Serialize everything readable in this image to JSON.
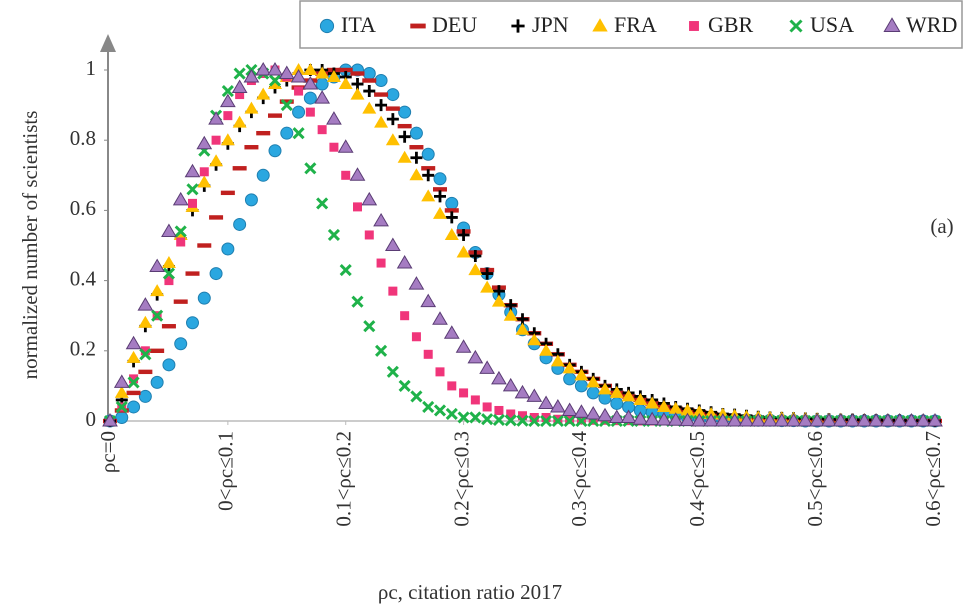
{
  "chart_data": {
    "type": "scatter",
    "xlabel": "ρc, citation ratio 2017",
    "ylabel": "normalized number of scientists",
    "annotation": "(a)",
    "x": [
      0,
      0.01,
      0.02,
      0.03,
      0.04,
      0.05,
      0.06,
      0.07,
      0.08,
      0.09,
      0.1,
      0.11,
      0.12,
      0.13,
      0.14,
      0.15,
      0.16,
      0.17,
      0.18,
      0.19,
      0.2,
      0.21,
      0.22,
      0.23,
      0.24,
      0.25,
      0.26,
      0.27,
      0.28,
      0.29,
      0.3,
      0.31,
      0.32,
      0.33,
      0.34,
      0.35,
      0.36,
      0.37,
      0.38,
      0.39,
      0.4,
      0.41,
      0.42,
      0.43,
      0.44,
      0.45,
      0.46,
      0.47,
      0.48,
      0.49,
      0.5,
      0.51,
      0.52,
      0.53,
      0.54,
      0.55,
      0.56,
      0.57,
      0.58,
      0.59,
      0.6,
      0.61,
      0.62,
      0.63,
      0.64,
      0.65,
      0.66,
      0.67,
      0.68,
      0.69,
      0.7
    ],
    "xlim": [
      0,
      0.7
    ],
    "xticks": [
      {
        "value": 0,
        "label": "ρc=0"
      },
      {
        "value": 0.1,
        "label": "0<ρc≤0.1"
      },
      {
        "value": 0.2,
        "label": "0.1<ρc≤0.2"
      },
      {
        "value": 0.3,
        "label": "0.2<ρc≤0.3"
      },
      {
        "value": 0.4,
        "label": "0.3<ρc≤0.4"
      },
      {
        "value": 0.5,
        "label": "0.4<ρc≤0.5"
      },
      {
        "value": 0.6,
        "label": "0.5<ρc≤0.6"
      },
      {
        "value": 0.7,
        "label": "0.6<ρc≤0.7"
      }
    ],
    "ylim": [
      0,
      1
    ],
    "yticks": [
      0,
      0.2,
      0.4,
      0.6,
      0.8,
      1
    ],
    "grid": false,
    "legend": "top",
    "series": [
      {
        "name": "ITA",
        "color": "#2aa7e0",
        "marker": "circle",
        "values": [
          0,
          0.01,
          0.04,
          0.07,
          0.11,
          0.16,
          0.22,
          0.28,
          0.35,
          0.42,
          0.49,
          0.56,
          0.63,
          0.7,
          0.77,
          0.82,
          0.88,
          0.92,
          0.96,
          0.98,
          1,
          1,
          0.99,
          0.97,
          0.93,
          0.88,
          0.82,
          0.76,
          0.69,
          0.62,
          0.55,
          0.48,
          0.42,
          0.36,
          0.31,
          0.26,
          0.22,
          0.18,
          0.15,
          0.12,
          0.1,
          0.08,
          0.065,
          0.05,
          0.04,
          0.03,
          0.025,
          0.02,
          0.015,
          0.01,
          0.008,
          0.006,
          0.005,
          0.004,
          0.003,
          0.002,
          0.002,
          0.001,
          0.001,
          0,
          0,
          0,
          0,
          0,
          0,
          0,
          0,
          0,
          0,
          0,
          0
        ]
      },
      {
        "name": "DEU",
        "color": "#c0201f",
        "marker": "dash",
        "values": [
          0,
          0.03,
          0.08,
          0.14,
          0.2,
          0.27,
          0.34,
          0.42,
          0.5,
          0.58,
          0.65,
          0.72,
          0.78,
          0.82,
          0.87,
          0.91,
          0.95,
          0.97,
          0.99,
          1,
          1,
          0.99,
          0.97,
          0.93,
          0.89,
          0.84,
          0.78,
          0.72,
          0.66,
          0.6,
          0.54,
          0.48,
          0.43,
          0.38,
          0.33,
          0.29,
          0.25,
          0.22,
          0.19,
          0.16,
          0.14,
          0.12,
          0.1,
          0.08,
          0.07,
          0.06,
          0.05,
          0.04,
          0.035,
          0.03,
          0.025,
          0.02,
          0.015,
          0.012,
          0.01,
          0.008,
          0.006,
          0.005,
          0.004,
          0.003,
          0.003,
          0.002,
          0.002,
          0.001,
          0.001,
          0.001,
          0,
          0,
          0,
          0,
          0
        ]
      },
      {
        "name": "JPN",
        "color": "#000000",
        "marker": "plus",
        "values": [
          0,
          0.06,
          0.17,
          0.27,
          0.36,
          0.44,
          0.52,
          0.6,
          0.67,
          0.73,
          0.79,
          0.84,
          0.88,
          0.92,
          0.95,
          0.97,
          0.99,
          1,
          1,
          0.99,
          0.98,
          0.96,
          0.94,
          0.9,
          0.86,
          0.81,
          0.75,
          0.7,
          0.64,
          0.58,
          0.53,
          0.47,
          0.42,
          0.37,
          0.33,
          0.29,
          0.25,
          0.22,
          0.19,
          0.16,
          0.14,
          0.12,
          0.1,
          0.09,
          0.08,
          0.07,
          0.06,
          0.05,
          0.04,
          0.035,
          0.03,
          0.025,
          0.02,
          0.018,
          0.015,
          0.012,
          0.01,
          0.009,
          0.008,
          0.007,
          0.006,
          0.005,
          0.004,
          0.004,
          0.003,
          0.003,
          0.002,
          0.002,
          0.001,
          0.001,
          0
        ]
      },
      {
        "name": "FRA",
        "color": "#ffc000",
        "marker": "triangle",
        "values": [
          0,
          0.08,
          0.18,
          0.28,
          0.37,
          0.45,
          0.53,
          0.61,
          0.68,
          0.74,
          0.8,
          0.85,
          0.89,
          0.93,
          0.96,
          0.98,
          1,
          1,
          0.99,
          0.98,
          0.96,
          0.93,
          0.89,
          0.85,
          0.8,
          0.75,
          0.7,
          0.64,
          0.59,
          0.53,
          0.48,
          0.43,
          0.38,
          0.34,
          0.3,
          0.26,
          0.23,
          0.2,
          0.17,
          0.15,
          0.13,
          0.11,
          0.09,
          0.08,
          0.07,
          0.06,
          0.05,
          0.04,
          0.035,
          0.03,
          0.025,
          0.02,
          0.018,
          0.015,
          0.012,
          0.01,
          0.009,
          0.008,
          0.007,
          0.006,
          0.005,
          0.004,
          0.004,
          0.003,
          0.003,
          0.002,
          0.002,
          0.001,
          0.001,
          0.001,
          0
        ]
      },
      {
        "name": "GBR",
        "color": "#f0357a",
        "marker": "square",
        "values": [
          0,
          0.04,
          0.12,
          0.2,
          0.3,
          0.4,
          0.51,
          0.62,
          0.71,
          0.8,
          0.87,
          0.93,
          0.97,
          0.99,
          1,
          0.98,
          0.94,
          0.88,
          0.83,
          0.78,
          0.7,
          0.61,
          0.53,
          0.45,
          0.37,
          0.3,
          0.24,
          0.19,
          0.14,
          0.1,
          0.08,
          0.06,
          0.04,
          0.03,
          0.02,
          0.015,
          0.01,
          0.01,
          0.005,
          0.004,
          0.003,
          0.002,
          0.002,
          0.001,
          0.001,
          0,
          0,
          0,
          0,
          0,
          0,
          0,
          0,
          0,
          0,
          0,
          0,
          0,
          0,
          0,
          0,
          0,
          0,
          0,
          0,
          0,
          0,
          0,
          0,
          0,
          0
        ]
      },
      {
        "name": "USA",
        "color": "#1fb24a",
        "marker": "cross",
        "values": [
          0,
          0.04,
          0.11,
          0.19,
          0.3,
          0.42,
          0.54,
          0.66,
          0.77,
          0.87,
          0.94,
          0.99,
          1,
          0.99,
          0.97,
          0.9,
          0.82,
          0.72,
          0.62,
          0.53,
          0.43,
          0.34,
          0.27,
          0.2,
          0.14,
          0.1,
          0.07,
          0.04,
          0.03,
          0.02,
          0.01,
          0.01,
          0.005,
          0.003,
          0.002,
          0.001,
          0,
          0,
          0,
          0,
          0,
          0,
          0,
          0,
          0,
          0,
          0,
          0,
          0,
          0,
          0,
          0,
          0,
          0,
          0,
          0,
          0,
          0,
          0,
          0,
          0,
          0,
          0,
          0,
          0,
          0,
          0,
          0,
          0,
          0,
          0
        ]
      },
      {
        "name": "WRD",
        "color": "#a57cc2",
        "marker": "triangle",
        "values": [
          0,
          0.11,
          0.22,
          0.33,
          0.44,
          0.54,
          0.63,
          0.71,
          0.79,
          0.86,
          0.91,
          0.95,
          0.98,
          1,
          1,
          0.99,
          0.98,
          0.96,
          0.92,
          0.86,
          0.78,
          0.7,
          0.63,
          0.57,
          0.5,
          0.45,
          0.39,
          0.34,
          0.29,
          0.25,
          0.21,
          0.18,
          0.15,
          0.12,
          0.1,
          0.08,
          0.07,
          0.05,
          0.04,
          0.03,
          0.025,
          0.02,
          0.015,
          0.01,
          0.01,
          0.005,
          0.004,
          0.003,
          0.002,
          0.001,
          0,
          0,
          0,
          0,
          0,
          0,
          0,
          0,
          0,
          0,
          0,
          0,
          0,
          0,
          0,
          0,
          0,
          0,
          0,
          0,
          0
        ]
      }
    ]
  }
}
